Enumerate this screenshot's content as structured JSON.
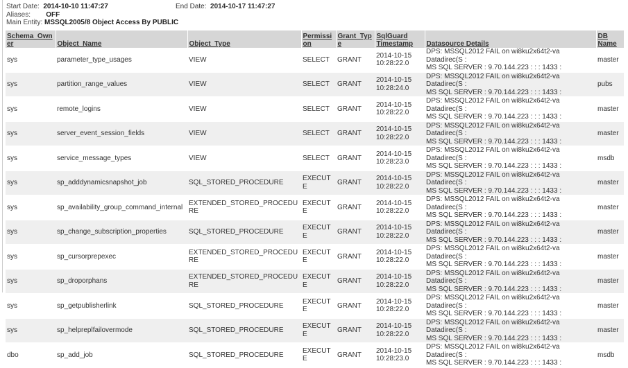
{
  "report": {
    "start_date_label": "Start Date:",
    "start_date": "2014-10-10 11:47:27",
    "end_date_label": "End Date:",
    "end_date": "2014-10-17 11:47:27",
    "aliases_label": "Aliases:",
    "aliases": "OFF",
    "main_entity_label": "Main Entity:",
    "main_entity": "MSSQL2005/8 Object Access By PUBLIC"
  },
  "table": {
    "columns": [
      "Schema_Owner",
      "Object_Name",
      "Object_Type",
      "Permission",
      "Grant_Type",
      "SqlGuard Timestamp",
      "Datasource Details",
      "DB Name"
    ],
    "rows": [
      [
        "sys",
        "parameter_type_usages",
        "VIEW",
        "SELECT",
        "GRANT",
        "2014-10-15 10:28:22.0",
        "master"
      ],
      [
        "sys",
        "partition_range_values",
        "VIEW",
        "SELECT",
        "GRANT",
        "2014-10-15 10:28:24.0",
        "pubs"
      ],
      [
        "sys",
        "remote_logins",
        "VIEW",
        "SELECT",
        "GRANT",
        "2014-10-15 10:28:22.0",
        "master"
      ],
      [
        "sys",
        "server_event_session_fields",
        "VIEW",
        "SELECT",
        "GRANT",
        "2014-10-15 10:28:22.0",
        "master"
      ],
      [
        "sys",
        "service_message_types",
        "VIEW",
        "SELECT",
        "GRANT",
        "2014-10-15 10:28:23.0",
        "msdb"
      ],
      [
        "sys",
        "sp_adddynamicsnapshot_job",
        "SQL_STORED_PROCEDURE",
        "EXECUTE",
        "GRANT",
        "2014-10-15 10:28:22.0",
        "master"
      ],
      [
        "sys",
        "sp_availability_group_command_internal",
        "EXTENDED_STORED_PROCEDURE",
        "EXECUTE",
        "GRANT",
        "2014-10-15 10:28:22.0",
        "master"
      ],
      [
        "sys",
        "sp_change_subscription_properties",
        "SQL_STORED_PROCEDURE",
        "EXECUTE",
        "GRANT",
        "2014-10-15 10:28:22.0",
        "master"
      ],
      [
        "sys",
        "sp_cursorprepexec",
        "EXTENDED_STORED_PROCEDURE",
        "EXECUTE",
        "GRANT",
        "2014-10-15 10:28:22.0",
        "master"
      ],
      [
        "sys",
        "sp_droporphans",
        "EXTENDED_STORED_PROCEDURE",
        "EXECUTE",
        "GRANT",
        "2014-10-15 10:28:22.0",
        "master"
      ],
      [
        "sys",
        "sp_getpublisherlink",
        "SQL_STORED_PROCEDURE",
        "EXECUTE",
        "GRANT",
        "2014-10-15 10:28:22.0",
        "master"
      ],
      [
        "sys",
        "sp_helpreplfailovermode",
        "SQL_STORED_PROCEDURE",
        "EXECUTE",
        "GRANT",
        "2014-10-15 10:28:22.0",
        "master"
      ],
      [
        "dbo",
        "sp_add_job",
        "SQL_STORED_PROCEDURE",
        "EXECUTE",
        "GRANT",
        "2014-10-15 10:28:23.0",
        "msdb"
      ]
    ],
    "datasource_line1": "DPS: MSSQL2012 FAIL on wi8ku2x64t2-va  Datadirec(S :",
    "datasource_line2": "MS SQL SERVER : 9.70.144.223 :  :  : 1433 :"
  }
}
